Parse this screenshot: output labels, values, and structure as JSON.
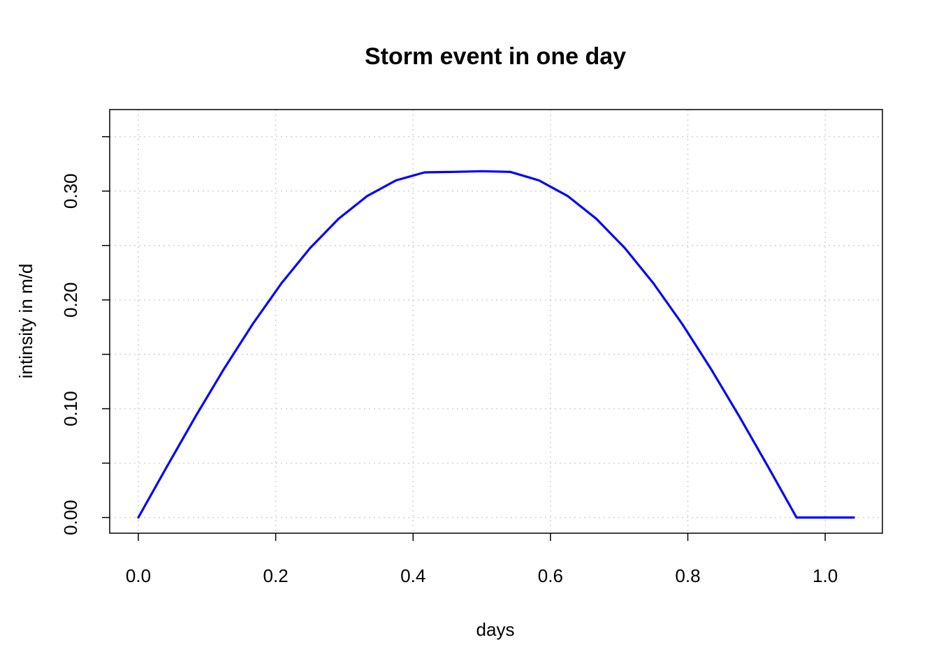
{
  "chart_data": {
    "type": "line",
    "title": "Storm event in one day",
    "xlabel": "days",
    "ylabel": "intinsity in m/d",
    "xlim": [
      -0.0417,
      1.0833
    ],
    "ylim": [
      -0.0144,
      0.3749
    ],
    "grid": true,
    "x_ticks": [
      {
        "value": 0.0,
        "label": "0.0"
      },
      {
        "value": 0.2,
        "label": "0.2"
      },
      {
        "value": 0.4,
        "label": "0.4"
      },
      {
        "value": 0.6,
        "label": "0.6"
      },
      {
        "value": 0.8,
        "label": "0.8"
      },
      {
        "value": 1.0,
        "label": "1.0"
      }
    ],
    "y_ticks": [
      {
        "value": 0.0,
        "label": "0.00"
      },
      {
        "value": 0.05,
        "label": ""
      },
      {
        "value": 0.1,
        "label": "0.10"
      },
      {
        "value": 0.15,
        "label": ""
      },
      {
        "value": 0.2,
        "label": "0.20"
      },
      {
        "value": 0.25,
        "label": ""
      },
      {
        "value": 0.3,
        "label": "0.30"
      },
      {
        "value": 0.35,
        "label": ""
      }
    ],
    "series": [
      {
        "color": "#0000ff",
        "x": [
          0,
          0.04167,
          0.08333,
          0.125,
          0.16667,
          0.20833,
          0.25,
          0.29167,
          0.33333,
          0.375,
          0.41667,
          0.45833,
          0.5,
          0.54167,
          0.58333,
          0.625,
          0.66667,
          0.70833,
          0.75,
          0.79167,
          0.83333,
          0.875,
          0.91667,
          0.95833,
          1.0,
          1.04167
        ],
        "y": [
          0.0,
          0.0469,
          0.0929,
          0.1369,
          0.178,
          0.2152,
          0.2476,
          0.2746,
          0.2955,
          0.3098,
          0.3172,
          0.3176,
          0.3183,
          0.3176,
          0.3098,
          0.2955,
          0.2746,
          0.2476,
          0.2152,
          0.178,
          0.1369,
          0.0929,
          0.0469,
          0.0,
          0.0,
          0.0
        ]
      }
    ]
  }
}
